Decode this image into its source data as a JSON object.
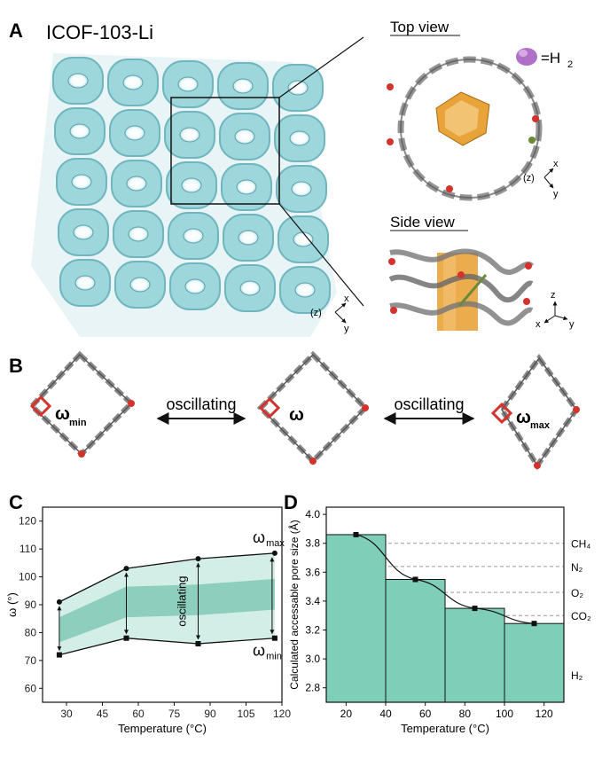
{
  "panel_a": {
    "letter": "A",
    "title": "ICOF-103-Li",
    "top_view_label": "Top view",
    "side_view_label": "Side view",
    "h2_legend": "=H",
    "h2_subscript": "2",
    "axis_z_paren": "(z)",
    "axis_x": "x",
    "axis_y": "y",
    "axis_z": "z"
  },
  "panel_b": {
    "letter": "B",
    "omega": "ω",
    "omega_min_sub": "min",
    "omega_max_sub": "max",
    "oscillating_left": "oscillating",
    "oscillating_right": "oscillating"
  },
  "colors": {
    "teal": "#7fcfb8",
    "teal_dark": "#3aa88a",
    "framework": "#9dd6db",
    "orange": "#e8a33a",
    "oxygen": "#d4322c",
    "carbon": "#7a7a7a",
    "grid": "#999999"
  },
  "chart_data": [
    {
      "panel": "C",
      "type": "line",
      "x": [
        27,
        55,
        85,
        117
      ],
      "series": [
        {
          "name": "ωmax",
          "values": [
            91,
            103,
            106.5,
            108.5
          ]
        },
        {
          "name": "ωmin",
          "values": [
            72,
            78,
            76,
            78
          ]
        }
      ],
      "xlabel": "Temperature (°C)",
      "ylabel": "ω (°)",
      "xlim": [
        20,
        120
      ],
      "ylim": [
        55,
        125
      ],
      "xticks": [
        30,
        45,
        60,
        75,
        90,
        105,
        120
      ],
      "yticks": [
        60,
        70,
        80,
        90,
        100,
        110,
        120
      ],
      "annotation": "oscillating",
      "label_max": "ω",
      "label_max_sub": "max",
      "label_min": "ω",
      "label_min_sub": "min"
    },
    {
      "panel": "D",
      "type": "bar",
      "x": [
        25,
        55,
        85,
        115
      ],
      "values": [
        3.86,
        3.55,
        3.35,
        3.245
      ],
      "xlabel": "Temperature (°C)",
      "ylabel": "Calculated accessable pore size (Å)",
      "xlim": [
        10,
        130
      ],
      "ylim": [
        2.7,
        4.05
      ],
      "xticks": [
        20,
        40,
        60,
        80,
        100,
        120
      ],
      "yticks": [
        "4.0",
        "3.8",
        "3.6",
        "3.4",
        "3.2",
        "3.0",
        "2.8"
      ],
      "reference_lines": [
        {
          "label": "CH₄",
          "value": 3.8
        },
        {
          "label": "N₂",
          "value": 3.64
        },
        {
          "label": "O₂",
          "value": 3.46
        },
        {
          "label": "CO₂",
          "value": 3.3
        },
        {
          "label": "H₂",
          "value": 2.89
        }
      ]
    }
  ]
}
